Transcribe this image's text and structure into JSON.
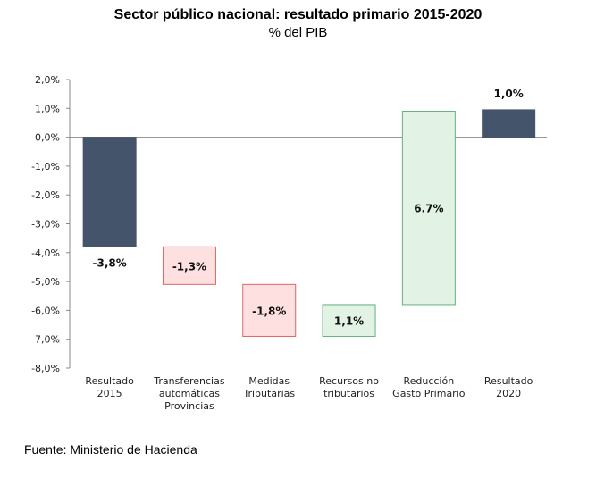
{
  "chart_data": {
    "type": "waterfall",
    "title": "Sector público nacional: resultado primario 2015-2020",
    "subtitle": "% del PIB",
    "ylim": [
      -8.0,
      2.0
    ],
    "yticks": [
      "2,0%",
      "1,0%",
      "0,0%",
      "-1,0%",
      "-2,0%",
      "-3,0%",
      "-4,0%",
      "-5,0%",
      "-6,0%",
      "-7,0%",
      "-8,0%"
    ],
    "categories": [
      [
        "Resultado",
        "2015"
      ],
      [
        "Transferencias",
        "automáticas",
        "Provincias"
      ],
      [
        "Medidas",
        "Tributarias"
      ],
      [
        "Recursos no",
        "tributarios"
      ],
      [
        "Reducción",
        "Gasto Primario"
      ],
      [
        "Resultado",
        "2020"
      ]
    ],
    "bars": [
      {
        "start": 0,
        "end": -3.8,
        "value": -3.8,
        "label": "-3,8%",
        "kind": "total"
      },
      {
        "start": -3.8,
        "end": -5.1,
        "value": -1.3,
        "label": "-1,3%",
        "kind": "decrease"
      },
      {
        "start": -5.1,
        "end": -6.9,
        "value": -1.8,
        "label": "-1,8%",
        "kind": "decrease"
      },
      {
        "start": -6.9,
        "end": -5.8,
        "value": 1.1,
        "label": "1,1%",
        "kind": "increase"
      },
      {
        "start": -5.8,
        "end": 0.9,
        "value": 6.7,
        "label": "6.7%",
        "kind": "increase"
      },
      {
        "start": 0,
        "end": 0.95,
        "value": 1.0,
        "label": "1,0%",
        "kind": "total"
      }
    ],
    "colors": {
      "total": "#44546a",
      "decrease_fill": "#fde0df",
      "decrease_stroke": "#e06666",
      "increase_fill": "#e2f3e6",
      "increase_stroke": "#5fb37a"
    }
  },
  "source": "Fuente: Ministerio de Hacienda"
}
